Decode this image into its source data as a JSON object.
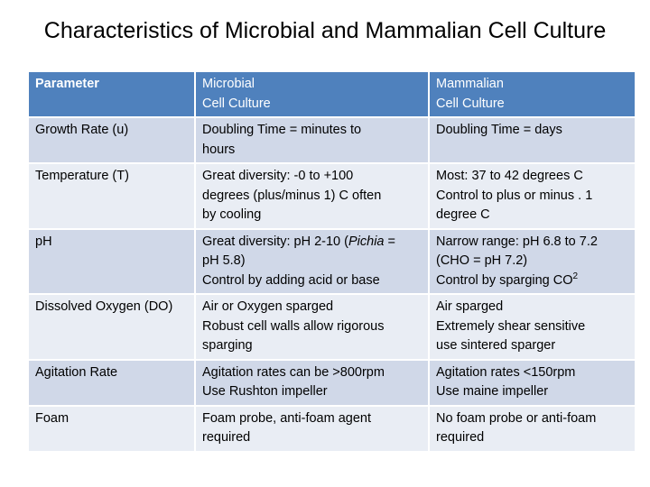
{
  "title": "Characteristics of Microbial and Mammalian Cell Culture",
  "headers": {
    "parameter": "Parameter",
    "microbial": [
      "Microbial",
      "Cell Culture"
    ],
    "mammalian": [
      "Mammalian",
      "Cell Culture"
    ]
  },
  "rows": [
    {
      "parameter": "Growth Rate (u)",
      "microbial": [
        "Doubling Time = minutes to",
        "hours"
      ],
      "mammalian": [
        "Doubling Time = days"
      ]
    },
    {
      "parameter": "Temperature (T)",
      "microbial": [
        "Great diversity:  -0 to +100",
        "degrees (plus/minus 1)  C often",
        "by cooling"
      ],
      "mammalian": [
        "Most:  37 to 42 degrees C",
        "Control to plus or minus . 1",
        "degree C"
      ]
    },
    {
      "parameter": "pH",
      "microbial": {
        "line1_prefix": "Great diversity:  pH 2-10 (",
        "line1_italic": "Pichia",
        "line1_suffix": " =",
        "line2": "pH 5.8)",
        "line3": "Control  by adding acid or base"
      },
      "mammalian": {
        "line1": "Narrow range:  pH 6.8 to 7.2",
        "line2": "(CHO = pH 7.2)",
        "line3_prefix": "Control by sparging CO",
        "line3_sup": "2"
      }
    },
    {
      "parameter": "Dissolved Oxygen (DO)",
      "microbial": [
        "Air or Oxygen sparged",
        "Robust cell walls allow rigorous",
        "sparging"
      ],
      "mammalian": [
        "Air sparged",
        "Extremely shear sensitive",
        "use sintered sparger"
      ]
    },
    {
      "parameter": "Agitation Rate",
      "microbial": [
        "Agitation rates can be >800rpm",
        "Use Rushton impeller"
      ],
      "mammalian": [
        "Agitation rates <150rpm",
        "Use maine impeller"
      ]
    },
    {
      "parameter": "Foam",
      "microbial": [
        "Foam probe, anti-foam agent",
        "required"
      ],
      "mammalian": [
        "No foam probe or anti-foam",
        "required"
      ]
    }
  ]
}
